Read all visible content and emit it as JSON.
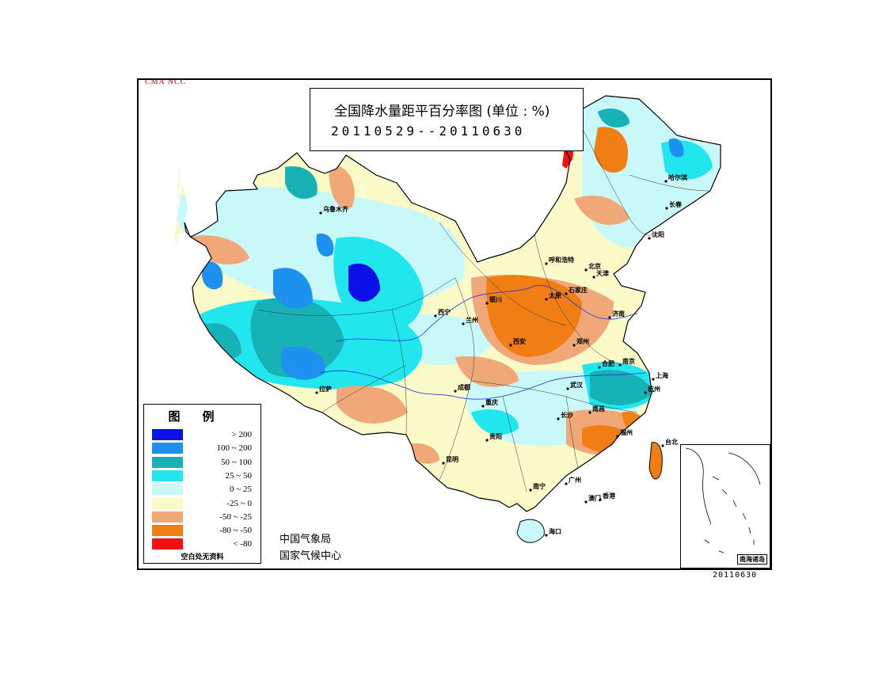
{
  "credit": "CMA  NCC",
  "title": {
    "line1": "全国降水量距平百分率图 (单位 : %)",
    "line2": "20110529--20110630"
  },
  "legend": {
    "title": "图例",
    "items": [
      {
        "label": "> 200",
        "color": "#0a10e6"
      },
      {
        "label": "100 ~ 200",
        "color": "#1e90f0"
      },
      {
        "label": "50 ~ 100",
        "color": "#16b2b6"
      },
      {
        "label": "25 ~ 50",
        "color": "#22e6ee"
      },
      {
        "label": "0 ~ 25",
        "color": "#c8f8f8"
      },
      {
        "label": "-25 ~ 0",
        "color": "#fafac8"
      },
      {
        "label": "-50 ~ -25",
        "color": "#f0a878"
      },
      {
        "label": "-80 ~ -50",
        "color": "#f07e12"
      },
      {
        "label": "< -80",
        "color": "#f01212"
      }
    ],
    "footnote": "空白处无资料"
  },
  "agency": {
    "line1": "中国气象局",
    "line2": "国家气候中心"
  },
  "inset_label": "南海诸岛",
  "date_stamp": "20110630",
  "cities": [
    {
      "name": "乌鲁木齐"
    },
    {
      "name": "哈尔滨"
    },
    {
      "name": "长春"
    },
    {
      "name": "沈阳"
    },
    {
      "name": "呼和浩特"
    },
    {
      "name": "北京"
    },
    {
      "name": "天津"
    },
    {
      "name": "太原"
    },
    {
      "name": "石家庄"
    },
    {
      "name": "银川"
    },
    {
      "name": "西宁"
    },
    {
      "name": "兰州"
    },
    {
      "name": "济南"
    },
    {
      "name": "西安"
    },
    {
      "name": "郑州"
    },
    {
      "name": "合肥"
    },
    {
      "name": "南京"
    },
    {
      "name": "上海"
    },
    {
      "name": "杭州"
    },
    {
      "name": "武汉"
    },
    {
      "name": "拉萨"
    },
    {
      "name": "成都"
    },
    {
      "name": "重庆"
    },
    {
      "name": "长沙"
    },
    {
      "name": "南昌"
    },
    {
      "name": "福州"
    },
    {
      "name": "台北"
    },
    {
      "name": "贵阳"
    },
    {
      "name": "昆明"
    },
    {
      "name": "南宁"
    },
    {
      "name": "广州"
    },
    {
      "name": "澳门"
    },
    {
      "name": "香港"
    },
    {
      "name": "海口"
    }
  ]
}
